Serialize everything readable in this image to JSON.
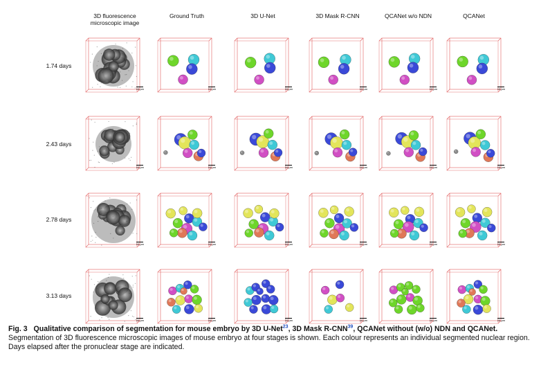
{
  "columns": [
    "3D fluorescence\nmicroscopic image",
    "Ground Truth",
    "3D U-Net",
    "3D Mask R-CNN",
    "QCANet w/o NDN",
    "QCANet"
  ],
  "rows": [
    "1.74 days",
    "2.43 days",
    "2.78 days",
    "3.13 days"
  ],
  "scalebar_label": "10 µm",
  "palette": {
    "grid": "#e05a5a",
    "green": "#6ed62a",
    "cyan": "#3fc9d6",
    "blue": "#3a49d8",
    "magenta": "#d14fc4",
    "yellow": "#e3e55a",
    "orange": "#e07858",
    "gray": "#8c8c8c"
  },
  "caption": {
    "fig_label": "Fig. 3",
    "title_part1": "Qualitative comparison of segmentation for mouse embryo by 3D U-Net",
    "ref1": "23",
    "title_part2": ", 3D Mask R-CNN",
    "ref2": "39",
    "title_part3": ", QCANet without (w/o) NDN and QCANet.",
    "body": "Segmentation of 3D fluorescence microscopic images of mouse embryo at four stages is shown. Each colour represents an individual segmented nuclear region. Days elapsed after the pronuclear stage are indicated."
  }
}
